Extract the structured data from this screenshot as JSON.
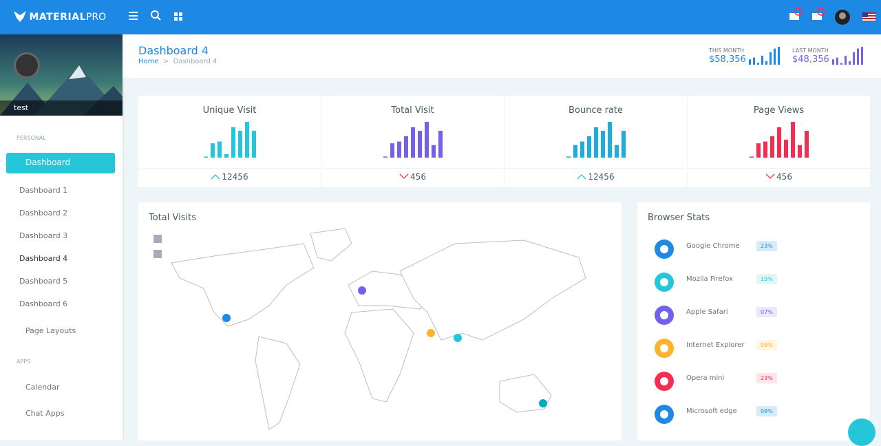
{
  "header": {
    "logo_bold": "MATERIAL",
    "logo_light": "PRO"
  },
  "sidebar": {
    "user": "test",
    "personal_label": "PERSONAL",
    "active": "Dashboard",
    "submenu": [
      "Dashboard 1",
      "Dashboard 2",
      "Dashboard 3",
      "Dashboard 4",
      "Dashboard 5",
      "Dashboard 6"
    ],
    "current": 3,
    "page_layouts": "Page Layouts",
    "apps_label": "APPS",
    "apps": [
      "Calendar",
      "Chat Apps"
    ]
  },
  "page": {
    "title": "Dashboard 4",
    "breadcrumb": [
      "Home",
      "Dashboard 4"
    ],
    "summary": [
      {
        "label": "THIS MONTH",
        "value": "$58,356",
        "color": "#1e88e5",
        "bars": [
          3,
          4,
          1,
          5,
          2,
          7,
          9,
          10
        ]
      },
      {
        "label": "LAST MONTH",
        "value": "$48,356",
        "color": "#7460ee",
        "bars": [
          3,
          4,
          1,
          5,
          2,
          7,
          9,
          10
        ]
      }
    ]
  },
  "stats": [
    {
      "title": "Unique Visit",
      "value": "12456",
      "trend": "up",
      "color": "#26c6da",
      "bars": [
        0.3,
        4,
        4.5,
        1,
        8.5,
        7.5,
        10,
        7.5
      ]
    },
    {
      "title": "Total Visit",
      "value": "456",
      "trend": "down",
      "color": "#7460ee",
      "bars": [
        0.3,
        4,
        4.5,
        6,
        8.5,
        7.5,
        10,
        3.5,
        7.5
      ]
    },
    {
      "title": "Bounce rate",
      "value": "12456",
      "trend": "up",
      "color": "#1eacdf",
      "bars": [
        0.3,
        3.5,
        4.5,
        6,
        8.5,
        7.5,
        10,
        3.5,
        7.5
      ]
    },
    {
      "title": "Page Views",
      "value": "456",
      "trend": "down",
      "color": "#f62d51",
      "bars": [
        0.3,
        4,
        4.5,
        6,
        8.5,
        5,
        10,
        3.5,
        7.5
      ]
    }
  ],
  "map": {
    "title": "Total Visits"
  },
  "browsers": {
    "title": "Browser Stats",
    "items": [
      {
        "name": "Google Chrome",
        "share": "23%",
        "color": "#1e88e5",
        "badge": "#d6ecfb"
      },
      {
        "name": "Mozila Firefox",
        "share": "15%",
        "color": "#26c6da",
        "badge": "#e0f7f3"
      },
      {
        "name": "Apple Safari",
        "share": "07%",
        "color": "#7460ee",
        "badge": "#ebe7fd"
      },
      {
        "name": "Internet Explorer",
        "share": "09%",
        "color": "#ffb22b",
        "badge": "#fff5e3"
      },
      {
        "name": "Opera mini",
        "share": "23%",
        "color": "#f62d51",
        "badge": "#fde5e9"
      },
      {
        "name": "Microsoft edge",
        "share": "09%",
        "color": "#1e88e5",
        "badge": "#d6ecfb"
      }
    ]
  }
}
